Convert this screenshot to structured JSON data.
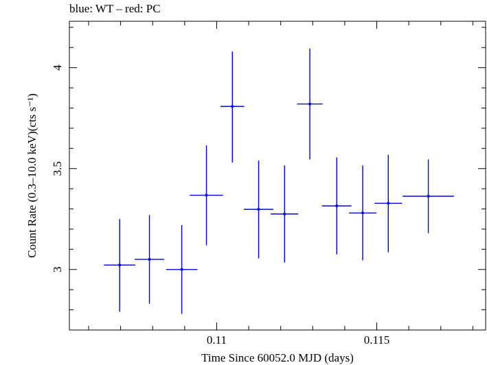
{
  "chart_data": {
    "type": "scatter",
    "subtitle": "blue: WT – red: PC",
    "xlabel": "Time Since 60052.0 MJD (days)",
    "ylabel": "Count Rate (0.3–10.0 keV)(cts s⁻¹)",
    "xlim": [
      0.1054,
      0.1184
    ],
    "ylim": [
      2.7,
      4.23
    ],
    "x_ticks": [
      0.11,
      0.115
    ],
    "x_tick_labels": [
      "0.11",
      "0.115"
    ],
    "y_ticks": [
      3,
      3.5,
      4
    ],
    "y_tick_labels": [
      "3",
      "3.5",
      "4"
    ],
    "grid": false,
    "colors": {
      "WT": "#0000dd"
    },
    "series": [
      {
        "name": "WT",
        "points": [
          {
            "x": 0.10697,
            "xerr": 0.00049,
            "y": 3.022,
            "ylo": 2.79,
            "yhi": 3.25
          },
          {
            "x": 0.1079,
            "xerr": 0.00046,
            "y": 3.05,
            "ylo": 2.83,
            "yhi": 3.27
          },
          {
            "x": 0.10891,
            "xerr": 0.00049,
            "y": 3.0,
            "ylo": 2.78,
            "yhi": 3.22
          },
          {
            "x": 0.10968,
            "xerr": 0.00052,
            "y": 3.368,
            "ylo": 3.12,
            "yhi": 3.615
          },
          {
            "x": 0.11049,
            "xerr": 0.00037,
            "y": 3.808,
            "ylo": 3.53,
            "yhi": 4.08
          },
          {
            "x": 0.11131,
            "xerr": 0.00046,
            "y": 3.298,
            "ylo": 3.055,
            "yhi": 3.54
          },
          {
            "x": 0.11212,
            "xerr": 0.00043,
            "y": 3.275,
            "ylo": 3.035,
            "yhi": 3.515
          },
          {
            "x": 0.11291,
            "xerr": 0.0004,
            "y": 3.82,
            "ylo": 3.545,
            "yhi": 4.095
          },
          {
            "x": 0.11375,
            "xerr": 0.00046,
            "y": 3.315,
            "ylo": 3.075,
            "yhi": 3.555
          },
          {
            "x": 0.11456,
            "xerr": 0.00043,
            "y": 3.28,
            "ylo": 3.045,
            "yhi": 3.515
          },
          {
            "x": 0.11536,
            "xerr": 0.00043,
            "y": 3.328,
            "ylo": 3.085,
            "yhi": 3.568
          },
          {
            "x": 0.11661,
            "xerr": 0.0008,
            "y": 3.363,
            "ylo": 3.18,
            "yhi": 3.545
          }
        ]
      }
    ]
  }
}
